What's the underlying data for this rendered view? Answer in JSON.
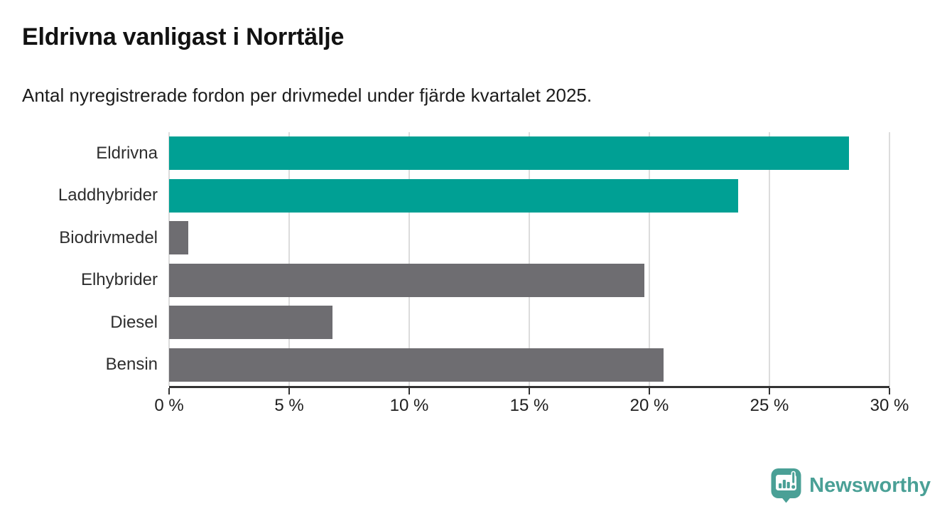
{
  "header": {
    "title": "Eldrivna vanligast i Norrtälje",
    "subtitle": "Antal nyregistrerade fordon per drivmedel under fjärde kvartalet 2025."
  },
  "chart_data": {
    "type": "bar",
    "orientation": "horizontal",
    "title": "Eldrivna vanligast i Norrtälje",
    "subtitle": "Antal nyregistrerade fordon per drivmedel under fjärde kvartalet 2025.",
    "categories": [
      "Eldrivna",
      "Laddhybrider",
      "Biodrivmedel",
      "Elhybrider",
      "Diesel",
      "Bensin"
    ],
    "values": [
      28.3,
      23.7,
      0.8,
      19.8,
      6.8,
      20.6
    ],
    "unit": "%",
    "bar_colors": [
      "#00A094",
      "#00A094",
      "#6E6D71",
      "#6E6D71",
      "#6E6D71",
      "#6E6D71"
    ],
    "highlight_color": "#00A094",
    "default_color": "#6E6D71",
    "xlabel": "",
    "ylabel": "",
    "xlim": [
      0,
      30
    ],
    "xticks": [
      0,
      5,
      10,
      15,
      20,
      25,
      30
    ],
    "xtick_labels": [
      "0 %",
      "5 %",
      "10 %",
      "15 %",
      "20 %",
      "25 %",
      "30 %"
    ],
    "grid": "vertical",
    "gridline_color": "#DCDCDC",
    "axis_color": "#333333",
    "legend": "none"
  },
  "footer": {
    "brand_name": "Newsworthy",
    "brand_color": "#4AA096"
  }
}
